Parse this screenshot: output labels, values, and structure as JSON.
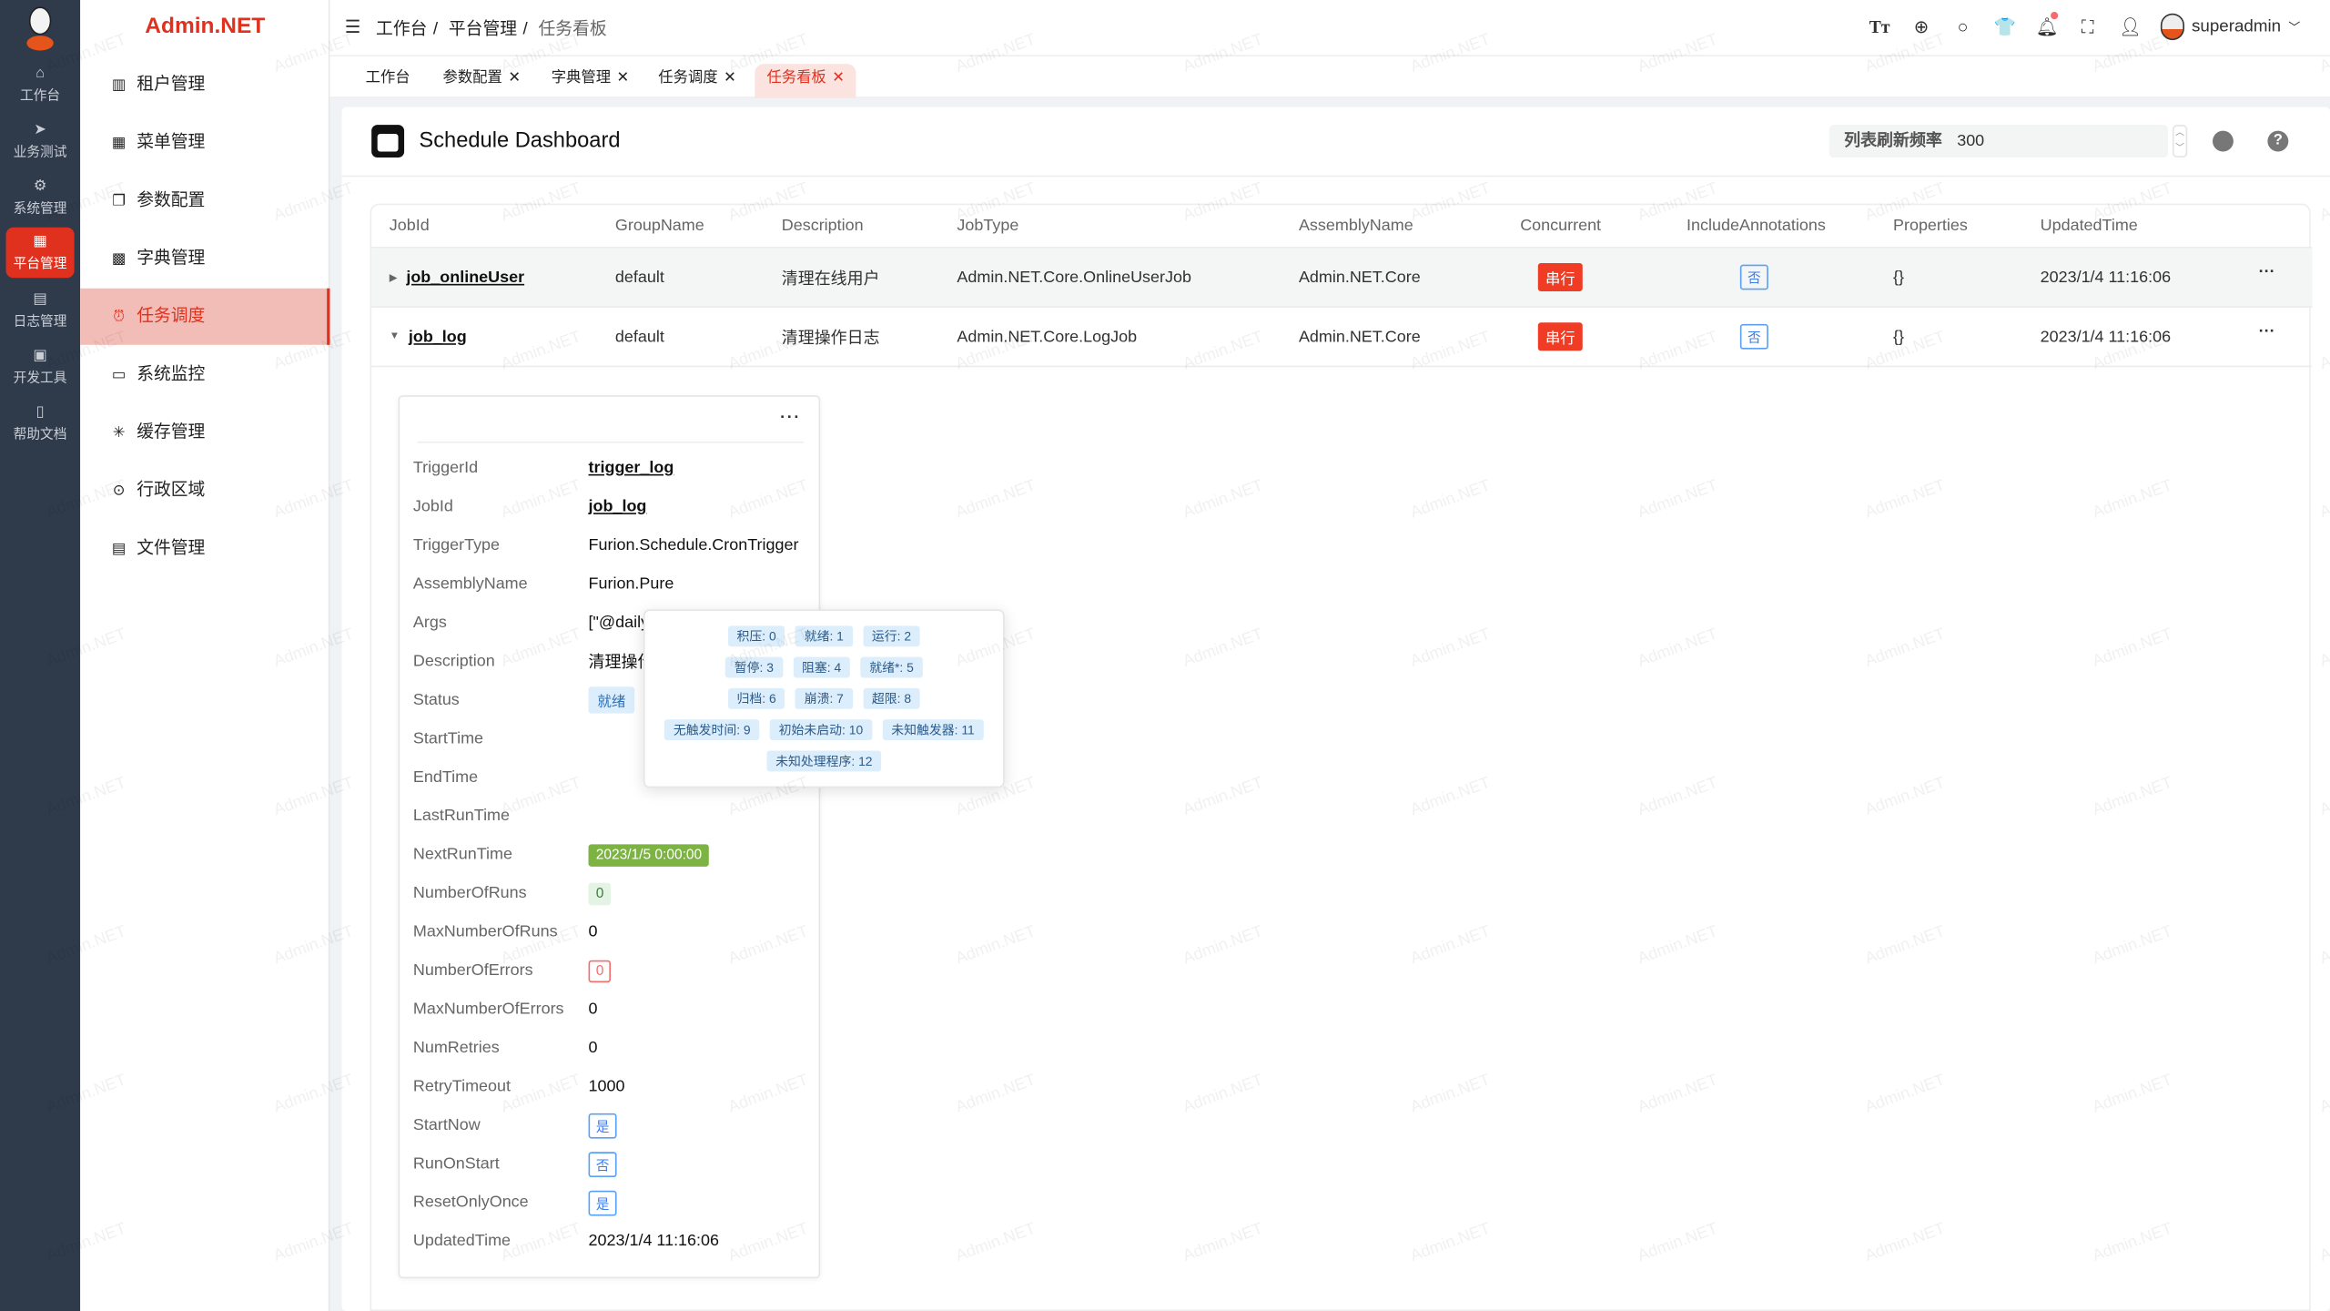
{
  "rail": {
    "items": [
      {
        "label": "工作台",
        "icon": "home-icon"
      },
      {
        "label": "业务测试",
        "icon": "send-icon"
      },
      {
        "label": "系统管理",
        "icon": "gear-icon"
      },
      {
        "label": "平台管理",
        "icon": "grid-icon",
        "active": true
      },
      {
        "label": "日志管理",
        "icon": "log-icon"
      },
      {
        "label": "开发工具",
        "icon": "chip-icon"
      },
      {
        "label": "帮助文档",
        "icon": "book-icon"
      }
    ]
  },
  "brand": "Admin.NET",
  "submenu": {
    "items": [
      {
        "label": "租户管理",
        "icon": "building-icon"
      },
      {
        "label": "菜单管理",
        "icon": "grid-icon"
      },
      {
        "label": "参数配置",
        "icon": "copy-icon"
      },
      {
        "label": "字典管理",
        "icon": "dictionary-icon"
      },
      {
        "label": "任务调度",
        "icon": "alarm-clock-icon",
        "active": true
      },
      {
        "label": "系统监控",
        "icon": "monitor-icon"
      },
      {
        "label": "缓存管理",
        "icon": "loading-icon"
      },
      {
        "label": "行政区域",
        "icon": "location-icon"
      },
      {
        "label": "文件管理",
        "icon": "document-icon"
      }
    ]
  },
  "breadcrumb": [
    "工作台",
    "平台管理",
    "任务看板"
  ],
  "header": {
    "username": "superadmin",
    "icons": [
      "font-size-icon",
      "language-icon",
      "search-icon",
      "skin-icon",
      "bell-icon",
      "fullscreen-icon",
      "user-icon"
    ]
  },
  "tabs": [
    {
      "label": "工作台",
      "closable": false
    },
    {
      "label": "参数配置",
      "closable": true
    },
    {
      "label": "字典管理",
      "closable": true
    },
    {
      "label": "任务调度",
      "closable": true
    },
    {
      "label": "任务看板",
      "closable": true,
      "active": true
    }
  ],
  "page": {
    "title": "Schedule Dashboard",
    "refresh_label": "列表刷新频率",
    "refresh_value": "300"
  },
  "table": {
    "columns": [
      "JobId",
      "GroupName",
      "Description",
      "JobType",
      "AssemblyName",
      "Concurrent",
      "IncludeAnnotations",
      "Properties",
      "UpdatedTime"
    ],
    "rows": [
      {
        "jobId": "job_onlineUser",
        "group": "default",
        "desc": "清理在线用户",
        "jobType": "Admin.NET.Core.OnlineUserJob",
        "assembly": "Admin.NET.Core",
        "concurrent": "串行",
        "annotations": "否",
        "properties": "{}",
        "updated": "2023/1/4 11:16:06",
        "expanded": false
      },
      {
        "jobId": "job_log",
        "group": "default",
        "desc": "清理操作日志",
        "jobType": "Admin.NET.Core.LogJob",
        "assembly": "Admin.NET.Core",
        "concurrent": "串行",
        "annotations": "否",
        "properties": "{}",
        "updated": "2023/1/4 11:16:06",
        "expanded": true
      }
    ]
  },
  "trigger": {
    "labels": {
      "TriggerId": "TriggerId",
      "JobId": "JobId",
      "TriggerType": "TriggerType",
      "AssemblyName": "AssemblyName",
      "Args": "Args",
      "Description": "Description",
      "Status": "Status",
      "StartTime": "StartTime",
      "EndTime": "EndTime",
      "LastRunTime": "LastRunTime",
      "NextRunTime": "NextRunTime",
      "NumberOfRuns": "NumberOfRuns",
      "MaxNumberOfRuns": "MaxNumberOfRuns",
      "NumberOfErrors": "NumberOfErrors",
      "MaxNumberOfErrors": "MaxNumberOfErrors",
      "NumRetries": "NumRetries",
      "RetryTimeout": "RetryTimeout",
      "StartNow": "StartNow",
      "RunOnStart": "RunOnStart",
      "ResetOnlyOnce": "ResetOnlyOnce",
      "UpdatedTime": "UpdatedTime"
    },
    "values": {
      "TriggerId": "trigger_log",
      "JobId": "job_log",
      "TriggerType": "Furion.Schedule.CronTrigger",
      "AssemblyName": "Furion.Pure",
      "Args": "[\"@daily",
      "Description": "清理操作",
      "Status": "就绪",
      "StartTime": "",
      "EndTime": "",
      "LastRunTime": "",
      "NextRunTime": "2023/1/5 0:00:00",
      "NumberOfRuns": "0",
      "MaxNumberOfRuns": "0",
      "NumberOfErrors": "0",
      "MaxNumberOfErrors": "0",
      "NumRetries": "0",
      "RetryTimeout": "1000",
      "StartNow": "是",
      "RunOnStart": "否",
      "ResetOnlyOnce": "是",
      "UpdatedTime": "2023/1/4 11:16:06"
    }
  },
  "status_popover": [
    [
      "积压: 0",
      "就绪: 1",
      "运行: 2"
    ],
    [
      "暂停: 3",
      "阻塞: 4",
      "就绪*: 5"
    ],
    [
      "归档: 6",
      "崩溃: 7",
      "超限: 8"
    ],
    [
      "无触发时间: 9",
      "初始未启动: 10",
      "未知触发器: 11"
    ],
    [
      "未知处理程序: 12"
    ]
  ],
  "watermark": "Admin.NET",
  "colors": {
    "accent": "#e0301e",
    "rail": "#2f3a4b",
    "active_sub_bg": "#f3bdb7",
    "next_run": "#7cb342"
  }
}
